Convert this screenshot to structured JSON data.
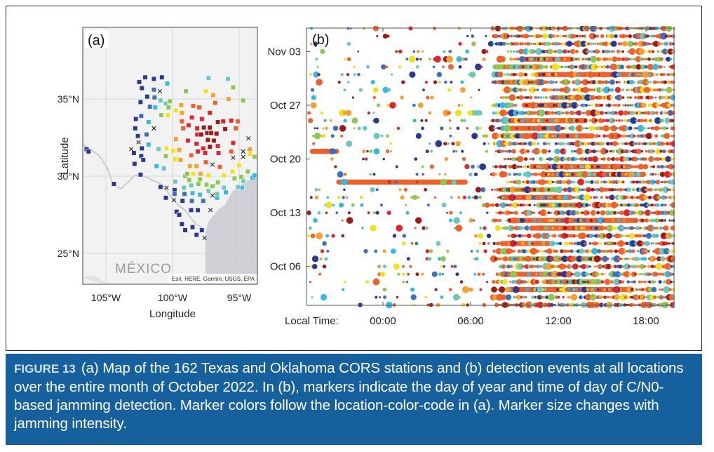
{
  "figure": {
    "label": "FIGURE 13",
    "caption": "(a) Map of the 162 Texas and Oklahoma CORS stations and (b) detection events at all locations over the entire month of October 2022. In (b), markers indicate the day of year and time of day of C/N0-based jamming detection. Marker colors follow the location-color-code in (a). Marker size changes with jamming intensity."
  },
  "colors": {
    "caption_bg": "#17609e",
    "land": "#f2f2f2",
    "water": "#cfd0d6",
    "palette": [
      "#2b3990",
      "#3a6fc0",
      "#36b7e6",
      "#6cc8bd",
      "#8cc84f",
      "#efe11e",
      "#f5a02f",
      "#f0602a",
      "#e0262a",
      "#9b1a1a"
    ]
  },
  "chart_data": [
    {
      "type": "map-scatter",
      "panel_label": "(a)",
      "xlabel": "Longitude",
      "ylabel": "Latitude",
      "xlim": [
        -106.8,
        -93.6
      ],
      "ylim": [
        23.2,
        38.2
      ],
      "xticks": [
        {
          "value": -105,
          "label": "105°W"
        },
        {
          "value": -100,
          "label": "100°W"
        },
        {
          "value": -95,
          "label": "95°W"
        }
      ],
      "yticks": [
        {
          "value": 35,
          "label": "35°N"
        },
        {
          "value": 30,
          "label": "30°N"
        },
        {
          "value": 25,
          "label": "25°N"
        }
      ],
      "region_label": "MÉXICO",
      "attribution": "Esri, HERE, Garmin, USGS, EPA",
      "station_groups": [
        {
          "color_index": 0,
          "points": [
            [
              -102.5,
              36.1
            ],
            [
              -102.05,
              36.4
            ],
            [
              -101.4,
              36.3
            ],
            [
              -100.8,
              36.4
            ],
            [
              -102.3,
              35.7
            ],
            [
              -102.4,
              34.8
            ],
            [
              -101.9,
              35.15
            ],
            [
              -102.75,
              33.7
            ],
            [
              -102.8,
              33.1
            ],
            [
              -102.6,
              32.6
            ],
            [
              -102.3,
              31.8
            ],
            [
              -102.9,
              31.5
            ],
            [
              -102.35,
              31.3
            ],
            [
              -102.2,
              31.05
            ],
            [
              -102.85,
              30.8
            ],
            [
              -102.4,
              30.1
            ],
            [
              -106.45,
              31.75
            ],
            [
              -106.3,
              31.6
            ],
            [
              -104.4,
              29.5
            ],
            [
              -100.9,
              29.3
            ],
            [
              -100.5,
              28.6
            ],
            [
              -99.85,
              29.1
            ],
            [
              -99.25,
              28.4
            ],
            [
              -99.7,
              27.7
            ],
            [
              -99.5,
              27.5
            ],
            [
              -98.6,
              27.8
            ],
            [
              -98.1,
              27.8
            ],
            [
              -99.3,
              26.9
            ],
            [
              -99.05,
              26.5
            ],
            [
              -98.5,
              26.7
            ],
            [
              -98.2,
              26.2
            ],
            [
              -97.8,
              26.5
            ]
          ]
        },
        {
          "color_index": 1,
          "points": [
            [
              -101.4,
              35.6
            ],
            [
              -101.35,
              35.1
            ],
            [
              -101.7,
              34.5
            ],
            [
              -102.35,
              33.9
            ],
            [
              -101.95,
              32.7
            ],
            [
              -98.55,
              28.4
            ],
            [
              -99.1,
              28.85
            ],
            [
              -97.7,
              28.4
            ],
            [
              -99.85,
              28.85
            ]
          ]
        },
        {
          "color_index": 2,
          "points": [
            [
              -100.4,
              36.0
            ],
            [
              -101.3,
              34.45
            ],
            [
              -101.8,
              33.5
            ],
            [
              -101.8,
              32.05
            ],
            [
              -101.2,
              30.65
            ],
            [
              -98.5,
              28.9
            ],
            [
              -97.95,
              28.8
            ],
            [
              -96.65,
              28.6
            ],
            [
              -94.8,
              29.25
            ],
            [
              -94.0,
              29.9
            ],
            [
              -93.85,
              30.05
            ],
            [
              -96.0,
              28.95
            ]
          ]
        },
        {
          "color_index": 3,
          "points": [
            [
              -100.9,
              34.9
            ],
            [
              -100.5,
              34.7
            ],
            [
              -101.05,
              31.75
            ],
            [
              -100.65,
              30.5
            ],
            [
              -99.8,
              29.65
            ],
            [
              -99.15,
              29.25
            ],
            [
              -98.6,
              29.4
            ],
            [
              -97.3,
              29.05
            ],
            [
              -96.15,
              29.25
            ],
            [
              -95.1,
              29.3
            ],
            [
              -94.7,
              29.7
            ],
            [
              -97.3,
              36.35
            ],
            [
              -95.85,
              36.3
            ],
            [
              -96.65,
              28.85
            ]
          ]
        },
        {
          "color_index": 4,
          "points": [
            [
              -100.2,
              34.85
            ],
            [
              -100.3,
              34.45
            ],
            [
              -100.85,
              33.95
            ],
            [
              -100.5,
              31.3
            ],
            [
              -99.0,
              35.5
            ],
            [
              -95.45,
              35.75
            ],
            [
              -94.7,
              34.9
            ],
            [
              -99.05,
              30.0
            ],
            [
              -98.9,
              30.15
            ],
            [
              -98.75,
              29.75
            ],
            [
              -98.05,
              29.5
            ],
            [
              -97.45,
              29.45
            ],
            [
              -97.0,
              29.35
            ],
            [
              -96.6,
              29.6
            ],
            [
              -95.35,
              29.85
            ],
            [
              -94.85,
              29.95
            ],
            [
              -94.35,
              30.3
            ],
            [
              -93.85,
              31.25
            ],
            [
              -97.95,
              29.8
            ]
          ]
        },
        {
          "color_index": 5,
          "points": [
            [
              -100.35,
              33.95
            ],
            [
              -100.45,
              31.8
            ],
            [
              -99.75,
              34.25
            ],
            [
              -99.95,
              31.65
            ],
            [
              -99.8,
              31.1
            ],
            [
              -98.45,
              30.15
            ],
            [
              -97.3,
              30.05
            ],
            [
              -96.15,
              30.05
            ],
            [
              -95.5,
              30.3
            ],
            [
              -95.0,
              30.7
            ],
            [
              -94.2,
              31.45
            ],
            [
              -97.5,
              35.5
            ]
          ]
        },
        {
          "color_index": 6,
          "points": [
            [
              -99.35,
              34.6
            ],
            [
              -99.3,
              34.1
            ],
            [
              -99.75,
              32.4
            ],
            [
              -99.5,
              31.7
            ],
            [
              -99.4,
              31.05
            ],
            [
              -98.7,
              30.65
            ],
            [
              -98.2,
              30.65
            ],
            [
              -97.9,
              30.15
            ],
            [
              -96.95,
              35.25
            ],
            [
              -95.8,
              35.0
            ],
            [
              -94.2,
              31.75
            ]
          ]
        },
        {
          "color_index": 7,
          "points": [
            [
              -98.45,
              34.55
            ],
            [
              -98.0,
              34.45
            ],
            [
              -96.8,
              34.75
            ],
            [
              -99.3,
              33.55
            ],
            [
              -99.2,
              33.1
            ],
            [
              -98.6,
              31.35
            ],
            [
              -97.5,
              30.9
            ],
            [
              -96.45,
              30.6
            ],
            [
              -95.6,
              31.6
            ],
            [
              -95.1,
              33.55
            ],
            [
              -95.25,
              33.1
            ]
          ]
        },
        {
          "color_index": 8,
          "points": [
            [
              -97.2,
              34.1
            ],
            [
              -98.55,
              33.8
            ],
            [
              -97.8,
              33.7
            ],
            [
              -98.8,
              33.3
            ],
            [
              -98.15,
              33.1
            ],
            [
              -98.15,
              32.7
            ],
            [
              -98.85,
              32.3
            ],
            [
              -98.2,
              32.1
            ],
            [
              -97.7,
              31.8
            ],
            [
              -98.1,
              31.6
            ],
            [
              -97.55,
              31.5
            ],
            [
              -96.55,
              31.5
            ],
            [
              -96.2,
              33.55
            ],
            [
              -95.6,
              33.6
            ],
            [
              -95.45,
              32.15
            ],
            [
              -96.6,
              31.95
            ]
          ]
        },
        {
          "color_index": 9,
          "points": [
            [
              -97.65,
              33.15
            ],
            [
              -97.2,
              33.15
            ],
            [
              -96.6,
              33.5
            ],
            [
              -96.05,
              33.05
            ],
            [
              -97.85,
              32.7
            ],
            [
              -97.4,
              32.8
            ],
            [
              -97.1,
              32.8
            ],
            [
              -96.7,
              32.75
            ],
            [
              -97.35,
              32.35
            ],
            [
              -96.9,
              32.3
            ],
            [
              -97.2,
              31.9
            ]
          ]
        }
      ],
      "x_markers": [
        [
          -100.95,
          35.5
        ],
        [
          -101.4,
          33.1
        ],
        [
          -102.55,
          32.2
        ],
        [
          -103.1,
          31.75
        ],
        [
          -97.0,
          30.75
        ],
        [
          -95.45,
          31.2
        ],
        [
          -94.7,
          31.6
        ],
        [
          -94.7,
          31.25
        ],
        [
          -94.3,
          32.45
        ],
        [
          -100.45,
          29.25
        ],
        [
          -99.9,
          28.45
        ],
        [
          -97.0,
          28.75
        ],
        [
          -97.15,
          27.8
        ],
        [
          -97.6,
          26.0
        ]
      ]
    },
    {
      "type": "scatter",
      "panel_label": "(b)",
      "xlabel": "Local Time:",
      "xlim_hours": [
        -5.25,
        19.9
      ],
      "xticks": [
        {
          "value": 0,
          "label": "00:00"
        },
        {
          "value": 6,
          "label": "06:00"
        },
        {
          "value": 12,
          "label": "12:00"
        },
        {
          "value": 18,
          "label": "18:00"
        }
      ],
      "ylim_day_of_october": [
        0.95,
        37.05
      ],
      "yticks": [
        {
          "value": 34,
          "label": "Nov 03"
        },
        {
          "value": 27,
          "label": "Oct 27"
        },
        {
          "value": 20,
          "label": "Oct 20"
        },
        {
          "value": 13,
          "label": "Oct 13"
        },
        {
          "value": 6,
          "label": "Oct 06"
        }
      ],
      "rows_day_of_october": [
        1,
        37
      ],
      "night_density": 0.35,
      "day_density": 0.9,
      "day_start_hour": 7.3,
      "continuous_bands": [
        {
          "day": 17,
          "start": -3.2,
          "end": 5.8,
          "color_index": 7
        },
        {
          "day": 33,
          "start": 9.5,
          "end": 13.0,
          "color_index": 7
        },
        {
          "day": 32,
          "start": 7.5,
          "end": 11.0,
          "color_index": 4
        },
        {
          "day": 31,
          "start": 10.5,
          "end": 18.5,
          "color_index": 7
        },
        {
          "day": 30,
          "start": 8.0,
          "end": 11.0,
          "color_index": 4
        },
        {
          "day": 28,
          "start": 12.0,
          "end": 14.5,
          "color_index": 4
        },
        {
          "day": 27,
          "start": 9.5,
          "end": 13.0,
          "color_index": 7
        },
        {
          "day": 26,
          "start": 6.0,
          "end": 6.8,
          "color_index": 3
        },
        {
          "day": 25,
          "start": 8.5,
          "end": 14.0,
          "color_index": 7
        },
        {
          "day": 24,
          "start": 8.0,
          "end": 12.0,
          "color_index": 7
        },
        {
          "day": 23,
          "start": 8.0,
          "end": 14.5,
          "color_index": 7
        },
        {
          "day": 21,
          "start": -5.0,
          "end": -3.0,
          "color_index": 7
        },
        {
          "day": 19,
          "start": 10.0,
          "end": 17.0,
          "color_index": 7
        },
        {
          "day": 18,
          "start": 11.0,
          "end": 18.0,
          "color_index": 7
        },
        {
          "day": 16,
          "start": 8.0,
          "end": 12.0,
          "color_index": 4
        },
        {
          "day": 15,
          "start": 8.0,
          "end": 13.0,
          "color_index": 7
        },
        {
          "day": 14,
          "start": 10.5,
          "end": 14.0,
          "color_index": 4
        },
        {
          "day": 12,
          "start": 8.5,
          "end": 17.5,
          "color_index": 7
        },
        {
          "day": 11,
          "start": 10.0,
          "end": 15.0,
          "color_index": 7
        },
        {
          "day": 9,
          "start": 8.0,
          "end": 11.5,
          "color_index": 7
        },
        {
          "day": 7,
          "start": 8.5,
          "end": 15.0,
          "color_index": 4
        },
        {
          "day": 5,
          "start": 8.0,
          "end": 12.5,
          "color_index": 7
        },
        {
          "day": 4,
          "start": 11.0,
          "end": 15.0,
          "color_index": 4
        },
        {
          "day": 3,
          "start": 8.5,
          "end": 17.0,
          "color_index": 7
        }
      ]
    }
  ]
}
